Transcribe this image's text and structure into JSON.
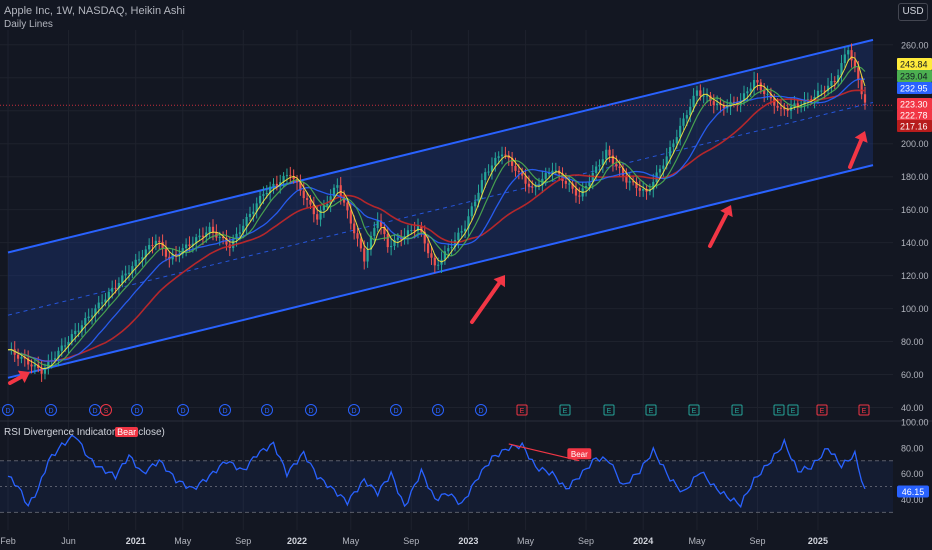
{
  "header": {
    "title": "Apple Inc, 1W, NASDAQ, Heikin Ashi",
    "subtitle": "Daily Lines",
    "currency": "USD"
  },
  "rsi_panel": {
    "title_pre": "RSI Divergence Indicator",
    "title_post": "close)",
    "bear_label": "Bear",
    "value_label": "46.15"
  },
  "price_labels": [
    {
      "text": "243.84",
      "value": 243.84,
      "bg": "#ffeb3b",
      "fg": "#131722"
    },
    {
      "text": "239.04",
      "value": 239.04,
      "bg": "#4caf50",
      "fg": "#131722"
    },
    {
      "text": "232.95",
      "value": 232.95,
      "bg": "#2962ff",
      "fg": "#ffffff"
    },
    {
      "text": "223.30",
      "value": 223.3,
      "bg": "#f23645",
      "fg": "#ffffff"
    },
    {
      "text": "222.78",
      "value": 222.78,
      "bg": "#f23645",
      "fg": "#ffffff"
    },
    {
      "text": "217.16",
      "value": 217.16,
      "bg": "#b71c1c",
      "fg": "#ffffff"
    }
  ],
  "event_markers": [
    "D",
    "D",
    "D",
    "S",
    "D",
    "D",
    "D",
    "D",
    "D",
    "D",
    "D",
    "D",
    "D",
    "E",
    "E",
    "E",
    "E",
    "E",
    "E",
    "E",
    "E",
    "E",
    "E"
  ],
  "colors": {
    "background": "#131722",
    "bull": "#26a69a",
    "bear": "#ef5350",
    "channel": "#2962ff",
    "channel_fill": "#1e3a8a",
    "ma_red": "#c62828",
    "ma_blue": "#2962ff",
    "ma_green": "#4caf50",
    "ma_yellow": "#ffeb3b",
    "rsi_line": "#2962ff",
    "arrow": "#f23645"
  },
  "chart_data": [
    {
      "type": "candlestick",
      "title": "Apple Inc, 1W, NASDAQ, Heikin Ashi",
      "y_ticks": [
        "260.00",
        "240.00",
        "220.00",
        "200.00",
        "180.00",
        "160.00",
        "140.00",
        "120.00",
        "100.00",
        "80.00",
        "60.00",
        "40.00"
      ],
      "ylim": [
        40,
        262
      ],
      "x_ticks": [
        "Feb",
        "Jun",
        "2021",
        "May",
        "Sep",
        "2022",
        "May",
        "Sep",
        "2023",
        "May",
        "Sep",
        "2024",
        "May",
        "Sep",
        "2025"
      ],
      "price_path_weeks": [
        0,
        10,
        21,
        38,
        44,
        48,
        60,
        66,
        76,
        84,
        92,
        98,
        106,
        110,
        113,
        122,
        127,
        136,
        142,
        147,
        156,
        162,
        170,
        178,
        184,
        190,
        196,
        205,
        212,
        218,
        222,
        230,
        238,
        246,
        250,
        255
      ],
      "price_path_values": [
        75,
        62,
        88,
        128,
        142,
        130,
        148,
        138,
        170,
        182,
        155,
        175,
        130,
        155,
        138,
        150,
        125,
        150,
        182,
        195,
        172,
        185,
        168,
        195,
        178,
        170,
        192,
        232,
        222,
        226,
        238,
        220,
        226,
        238,
        258,
        225
      ],
      "moving_averages": [
        "red",
        "blue",
        "green",
        "yellow"
      ],
      "channel": {
        "upper_start": 134,
        "upper_end": 263,
        "lower_start": 58,
        "lower_end": 187
      },
      "grid": true
    },
    {
      "type": "line",
      "title": "RSI Divergence Indicator",
      "y_ticks": [
        "100.00",
        "80.00",
        "60.00",
        "40.00"
      ],
      "ylim": [
        22,
        100
      ],
      "band": [
        30,
        70
      ],
      "rsi_weeks": [
        0,
        3,
        6,
        9,
        12,
        16,
        20,
        24,
        27,
        32,
        36,
        40,
        45,
        50,
        55,
        60,
        65,
        70,
        74,
        79,
        83,
        88,
        92,
        97,
        101,
        106,
        110,
        114,
        118,
        123,
        127,
        131,
        135,
        140,
        144,
        149,
        153,
        157,
        162,
        166,
        170,
        175,
        179,
        183,
        188,
        192,
        197,
        201,
        206,
        210,
        214,
        218,
        222,
        227,
        231,
        235,
        239,
        244,
        248,
        252,
        255
      ],
      "rsi_values": [
        58,
        50,
        35,
        48,
        70,
        82,
        90,
        72,
        65,
        58,
        74,
        60,
        70,
        55,
        48,
        58,
        70,
        62,
        75,
        83,
        60,
        76,
        58,
        47,
        38,
        55,
        45,
        60,
        34,
        62,
        40,
        45,
        36,
        58,
        72,
        80,
        82,
        65,
        60,
        48,
        58,
        72,
        70,
        50,
        62,
        78,
        56,
        45,
        62,
        50,
        42,
        36,
        55,
        70,
        84,
        62,
        65,
        80,
        66,
        75,
        46
      ]
    }
  ]
}
